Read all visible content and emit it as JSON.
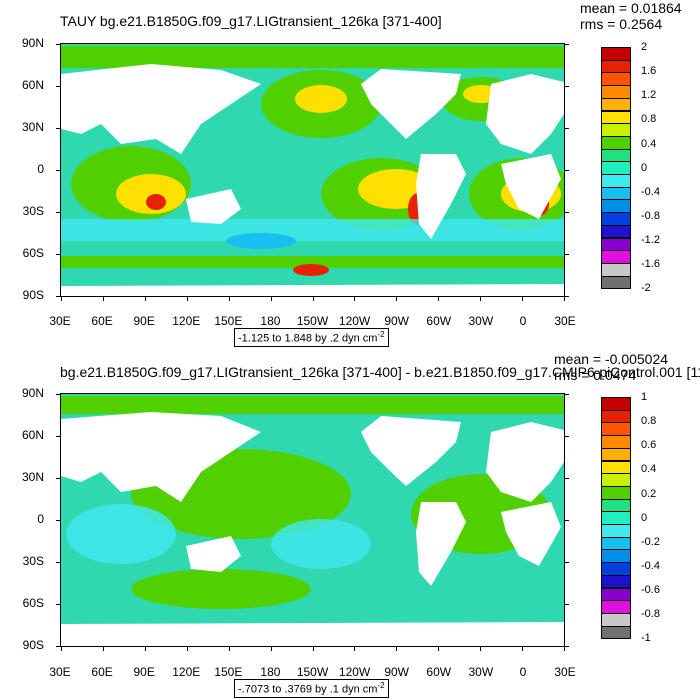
{
  "panel1": {
    "title": "TAUY bg.e21.B1850G.f09_g17.LIGtransient_126ka [371-400]",
    "mean": "mean = 0.01864",
    "rms": "rms = 0.2564",
    "range": "-1.125 to 1.848 by .2 dyn cm",
    "range_sup": "-2",
    "colorbar_labels": [
      "2",
      "1.6",
      "1.2",
      "0.8",
      "0.4",
      "0",
      "-0.4",
      "-0.8",
      "-1.2",
      "-1.6",
      "-2"
    ],
    "colorbar_colors": [
      "#c40000",
      "#e82200",
      "#ff5500",
      "#ff8a00",
      "#ffb000",
      "#ffe000",
      "#c8f000",
      "#50d000",
      "#20e080",
      "#20f0c0",
      "#40e8f0",
      "#18c0f0",
      "#0090e8",
      "#0040e0",
      "#2010d0",
      "#8800cc",
      "#e010e0",
      "#c8c8c8",
      "#707070"
    ]
  },
  "panel2": {
    "title": "bg.e21.B1850G.f09_g17.LIGtransient_126ka [371-400] - b.e21.B1850.f09_g17.CMIP6-piControl.001 [11",
    "mean": "mean = -0.005024",
    "rms": "rms = 0.0474",
    "range": "-.7073 to .3769 by .1 dyn cm",
    "range_sup": "-2",
    "colorbar_labels": [
      "1",
      "0.8",
      "0.6",
      "0.4",
      "0.2",
      "0",
      "-0.2",
      "-0.4",
      "-0.6",
      "-0.8",
      "-1"
    ],
    "colorbar_colors": [
      "#c40000",
      "#e82200",
      "#ff5500",
      "#ff8a00",
      "#ffb000",
      "#ffe000",
      "#c8f000",
      "#50d000",
      "#20e080",
      "#20f0c0",
      "#40e8f0",
      "#18c0f0",
      "#0090e8",
      "#0040e0",
      "#2010d0",
      "#8800cc",
      "#e010e0",
      "#c8c8c8",
      "#707070"
    ]
  },
  "axes": {
    "lat_labels": [
      "90N",
      "60N",
      "30N",
      "0",
      "30S",
      "60S",
      "90S"
    ],
    "lon_labels": [
      "30E",
      "60E",
      "90E",
      "120E",
      "150E",
      "180",
      "150W",
      "120W",
      "90W",
      "60W",
      "30W",
      "0",
      "30E"
    ]
  }
}
